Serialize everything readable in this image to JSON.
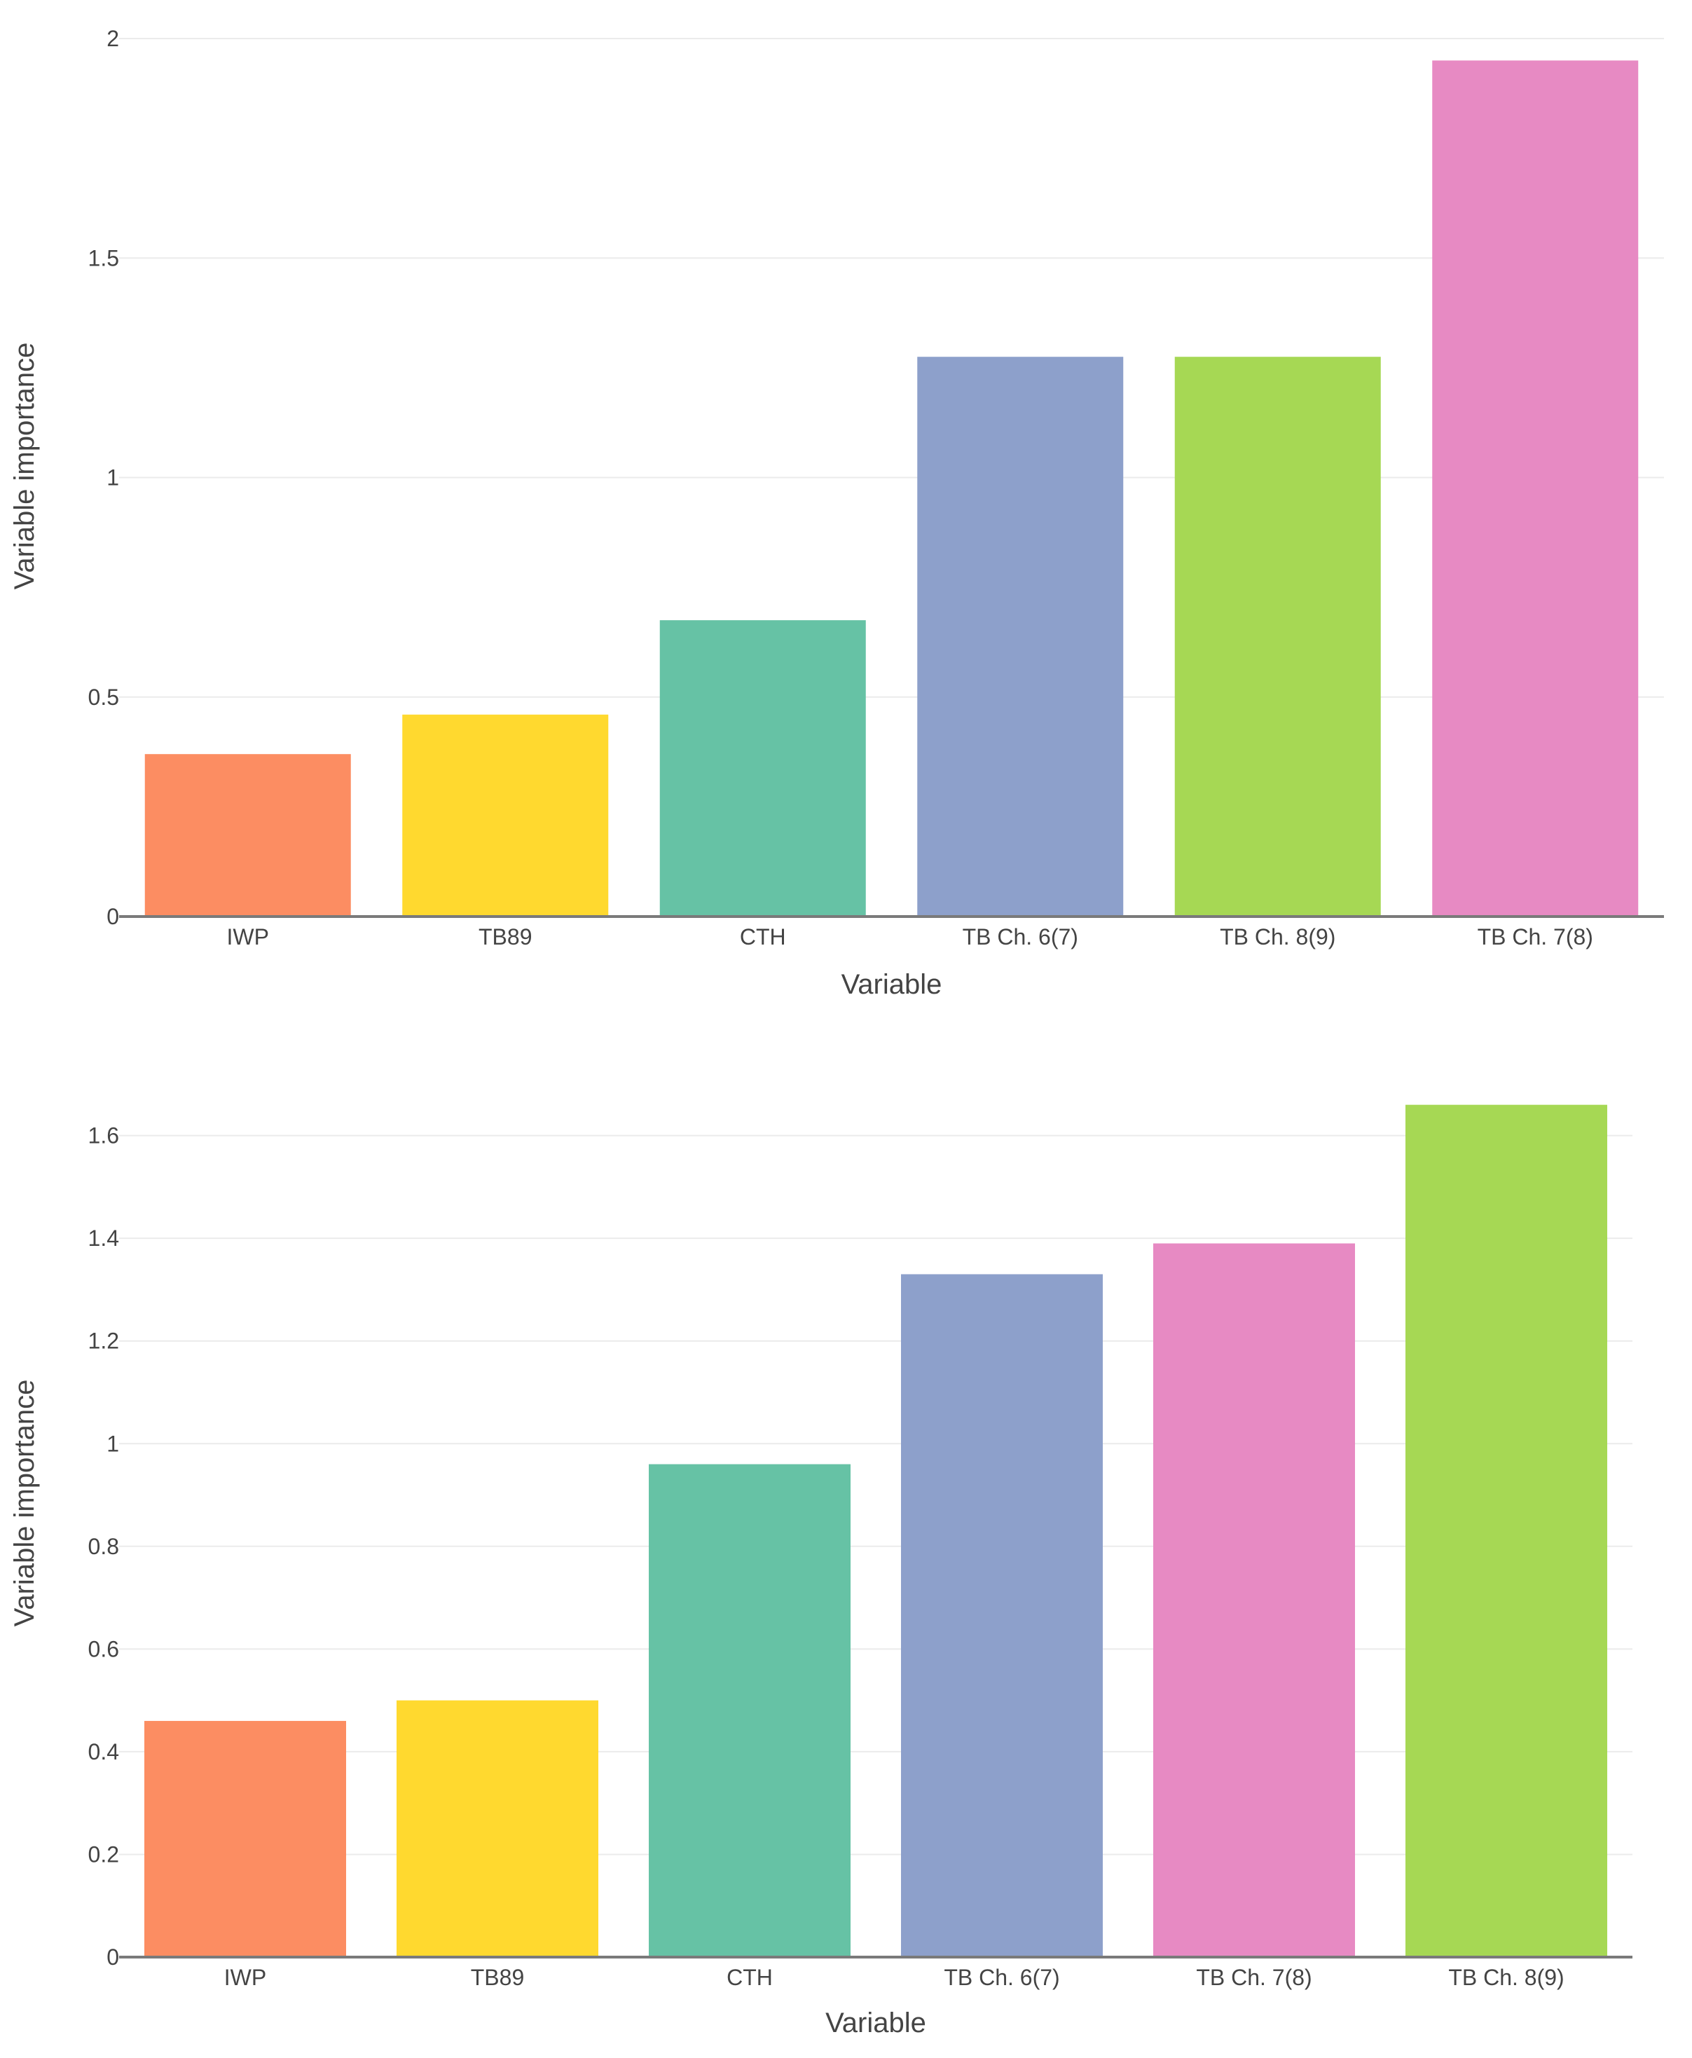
{
  "chart_data": [
    {
      "type": "bar",
      "categories": [
        "IWP",
        "TB89",
        "CTH",
        "TB Ch. 6(7)",
        "TB Ch. 8(9)",
        "TB Ch. 7(8)"
      ],
      "values": [
        0.37,
        0.46,
        0.675,
        1.275,
        1.275,
        1.95
      ],
      "colors": [
        "#fc8d62",
        "#ffd92f",
        "#66c2a5",
        "#8da0cb",
        "#a6d854",
        "#e78ac3"
      ],
      "title": "",
      "xlabel": "Variable",
      "ylabel": "Variable importance",
      "ylim": [
        0,
        2
      ],
      "yticks": [
        0,
        0.5,
        1,
        1.5,
        2
      ],
      "ytick_labels": [
        "0",
        "0.5",
        "1",
        "1.5",
        "2"
      ],
      "grid": true
    },
    {
      "type": "bar",
      "categories": [
        "IWP",
        "TB89",
        "CTH",
        "TB Ch. 6(7)",
        "TB Ch. 7(8)",
        "TB Ch. 8(9)"
      ],
      "values": [
        0.46,
        0.5,
        0.96,
        1.33,
        1.39,
        1.66
      ],
      "colors": [
        "#fc8d62",
        "#ffd92f",
        "#66c2a5",
        "#8da0cb",
        "#e78ac3",
        "#a6d854"
      ],
      "title": "",
      "xlabel": "Variable",
      "ylabel": "Variable importance",
      "ylim": [
        0,
        1.68
      ],
      "yticks": [
        0,
        0.2,
        0.4,
        0.6,
        0.8,
        1,
        1.2,
        1.4,
        1.6
      ],
      "ytick_labels": [
        "0",
        "0.2",
        "0.4",
        "0.6",
        "0.8",
        "1",
        "1.2",
        "1.4",
        "1.6"
      ],
      "grid": true
    }
  ]
}
